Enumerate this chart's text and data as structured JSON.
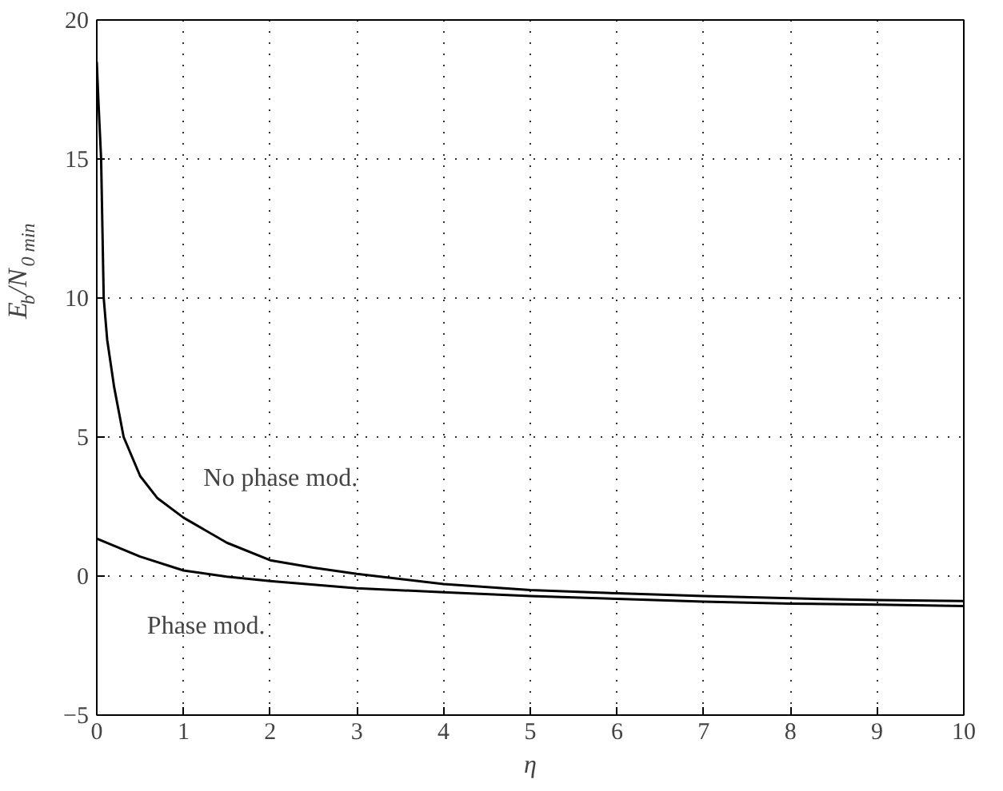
{
  "chart_data": {
    "type": "line",
    "xlabel": "η",
    "ylabel": "E$_{b}$/N$_{0 min}$",
    "xlim": [
      0,
      10
    ],
    "ylim": [
      -5,
      20
    ],
    "xticks": [
      0,
      1,
      2,
      3,
      4,
      5,
      6,
      7,
      8,
      9,
      10
    ],
    "yticks": [
      -5,
      0,
      5,
      10,
      15,
      20
    ],
    "grid": true,
    "line_style": "solid",
    "marker": "none",
    "series": [
      {
        "color": "#000000",
        "x": [
          0.0,
          0.02,
          0.05,
          0.08,
          0.12,
          0.2,
          0.31,
          0.5,
          0.7,
          1,
          1.5,
          2,
          2.5,
          3,
          4,
          5,
          6,
          7,
          8,
          9,
          10
        ],
        "values": [
          18.5,
          17,
          15,
          10,
          8.5,
          6.8,
          5,
          3.6,
          2.8,
          2.1,
          1.2,
          0.57,
          0.3,
          0.08,
          -0.29,
          -0.5,
          -0.62,
          -0.72,
          -0.8,
          -0.86,
          -0.9
        ]
      },
      {
        "color": "#000000",
        "x": [
          0,
          0.5,
          1,
          1.5,
          2,
          3,
          4,
          5,
          6,
          7,
          8,
          9,
          10
        ],
        "values": [
          1.35,
          0.7,
          0.2,
          -0.02,
          -0.18,
          -0.44,
          -0.58,
          -0.72,
          -0.82,
          -0.92,
          -0.99,
          -1.03,
          -1.08
        ]
      }
    ],
    "annotations": [
      "No phase mod.",
      "Phase mod."
    ]
  }
}
